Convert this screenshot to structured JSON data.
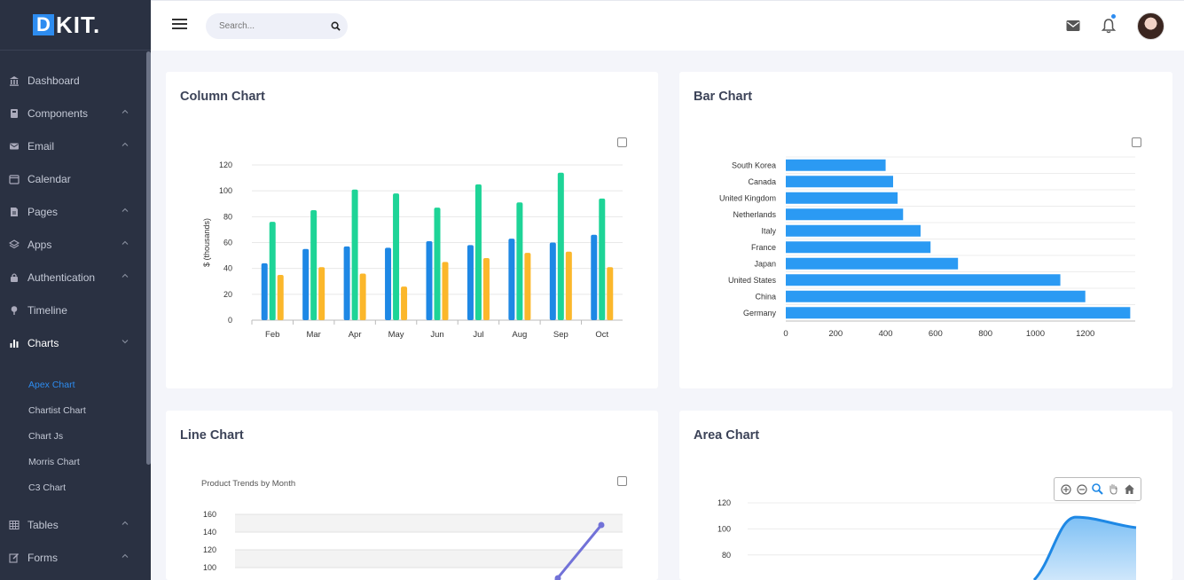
{
  "brand": {
    "logo_letter": "D",
    "logo_rest": "KIT."
  },
  "search": {
    "placeholder": "Search..."
  },
  "sidebar": {
    "items": [
      {
        "label": "Dashboard",
        "icon": "bank-icon",
        "chevron": false
      },
      {
        "label": "Components",
        "icon": "book-icon",
        "chevron": true
      },
      {
        "label": "Email",
        "icon": "mail-icon",
        "chevron": true
      },
      {
        "label": "Calendar",
        "icon": "calendar-icon",
        "chevron": false
      },
      {
        "label": "Pages",
        "icon": "page-icon",
        "chevron": true
      },
      {
        "label": "Apps",
        "icon": "apps-icon",
        "chevron": true
      },
      {
        "label": "Authentication",
        "icon": "lock-icon",
        "chevron": true
      },
      {
        "label": "Timeline",
        "icon": "pin-icon",
        "chevron": false
      },
      {
        "label": "Charts",
        "icon": "chart-icon",
        "chevron": true,
        "expanded": true
      }
    ],
    "chart_subitems": [
      {
        "label": "Apex Chart",
        "active": true
      },
      {
        "label": "Chartist Chart"
      },
      {
        "label": "Chart Js"
      },
      {
        "label": "Morris Chart"
      },
      {
        "label": "C3 Chart"
      }
    ],
    "items_after": [
      {
        "label": "Tables",
        "icon": "table-icon",
        "chevron": true
      },
      {
        "label": "Forms",
        "icon": "edit-icon",
        "chevron": true
      }
    ]
  },
  "cards": {
    "column": {
      "title": "Column Chart"
    },
    "bar": {
      "title": "Bar Chart"
    },
    "line": {
      "title": "Line Chart"
    },
    "area": {
      "title": "Area Chart"
    }
  },
  "colors": {
    "blue": "#1e88e5",
    "green": "#1ed497",
    "orange": "#fbb72b",
    "bar": "#2b9af3",
    "line": "#7272d8",
    "area": "#1e88e5"
  },
  "chart_data": [
    {
      "type": "bar",
      "categories": [
        "Feb",
        "Mar",
        "Apr",
        "May",
        "Jun",
        "Jul",
        "Aug",
        "Sep",
        "Oct"
      ],
      "series": [
        {
          "values": [
            44,
            55,
            57,
            56,
            61,
            58,
            63,
            60,
            66
          ]
        },
        {
          "values": [
            76,
            85,
            101,
            98,
            87,
            105,
            91,
            114,
            94
          ]
        },
        {
          "values": [
            35,
            41,
            36,
            26,
            45,
            48,
            52,
            53,
            41
          ]
        }
      ],
      "ylabel": "$ (thousands)",
      "ylim": [
        0,
        120
      ],
      "yticks": [
        0,
        20,
        40,
        60,
        80,
        100,
        120
      ]
    },
    {
      "type": "bar",
      "orientation": "horizontal",
      "categories": [
        "South Korea",
        "Canada",
        "United Kingdom",
        "Netherlands",
        "Italy",
        "France",
        "Japan",
        "United States",
        "China",
        "Germany"
      ],
      "values": [
        400,
        430,
        448,
        470,
        540,
        580,
        690,
        1100,
        1200,
        1380
      ],
      "xlim": [
        0,
        1400
      ],
      "xticks": [
        0,
        200,
        400,
        600,
        800,
        1000,
        1200
      ]
    },
    {
      "type": "line",
      "title": "Product Trends by Month",
      "visible_yticks": [
        100,
        120,
        140,
        160
      ],
      "visible_points": [
        {
          "x": 8,
          "y": 148
        }
      ]
    },
    {
      "type": "area",
      "visible_yticks": [
        80,
        100,
        120
      ],
      "visible_peak": 109,
      "visible_end": 101
    }
  ]
}
